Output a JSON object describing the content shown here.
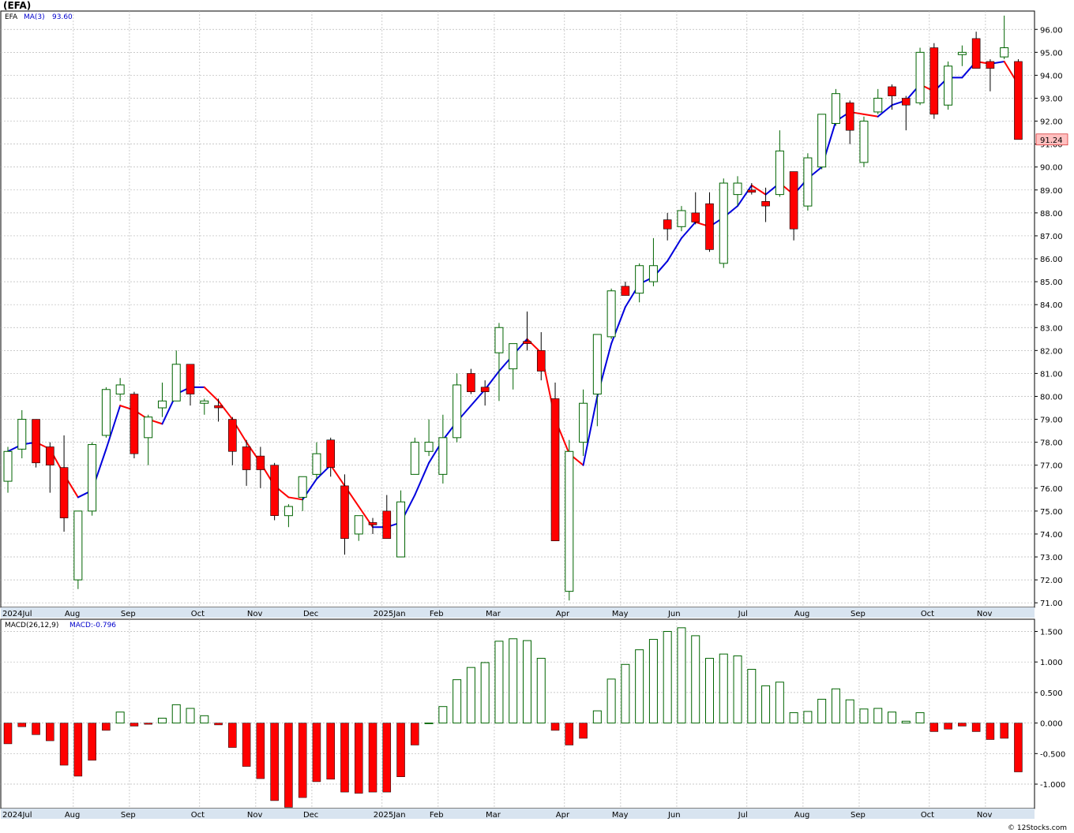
{
  "symbol": "(EFA)",
  "footer": "© 12Stocks.com",
  "colors": {
    "up": "#ffffff",
    "up_border": "#006400",
    "down": "#ff0000",
    "ma_up": "#0000dd",
    "ma_down": "#ff0000",
    "grid": "#b8b8b8",
    "axis_band": "#d8e4f0",
    "last_price_bg": "#ffc0c0"
  },
  "chart_data": [
    {
      "type": "candlestick",
      "panel": "price",
      "legend": {
        "symbol": "EFA",
        "ma_label": "MA(3)",
        "ma_value": "93.60"
      },
      "last_price_label": "91.24",
      "ylim": [
        70.8,
        96.8
      ],
      "y_ticks": [
        "71.00",
        "72.00",
        "73.00",
        "74.00",
        "75.00",
        "76.00",
        "77.00",
        "78.00",
        "79.00",
        "80.00",
        "81.00",
        "82.00",
        "83.00",
        "84.00",
        "85.00",
        "86.00",
        "87.00",
        "88.00",
        "89.00",
        "90.00",
        "91.00",
        "92.00",
        "93.00",
        "94.00",
        "95.00",
        "96.00"
      ],
      "months": [
        {
          "label": "2024Jul",
          "week": 0
        },
        {
          "label": "Aug",
          "week": 5
        },
        {
          "label": "Sep",
          "week": 9
        },
        {
          "label": "Oct",
          "week": 14
        },
        {
          "label": "Nov",
          "week": 18
        },
        {
          "label": "Dec",
          "week": 22
        },
        {
          "label": "2025Jan",
          "week": 27
        },
        {
          "label": "Feb",
          "week": 31
        },
        {
          "label": "Mar",
          "week": 35
        },
        {
          "label": "Apr",
          "week": 40
        },
        {
          "label": "May",
          "week": 44
        },
        {
          "label": "Jun",
          "week": 48
        },
        {
          "label": "Jul",
          "week": 53
        },
        {
          "label": "Aug",
          "week": 57
        },
        {
          "label": "Sep",
          "week": 61
        },
        {
          "label": "Oct",
          "week": 66
        },
        {
          "label": "Nov",
          "week": 70
        }
      ],
      "candles": [
        [
          76.3,
          77.8,
          75.8,
          77.6
        ],
        [
          77.7,
          79.4,
          77.3,
          79.0
        ],
        [
          79.0,
          79.0,
          76.9,
          77.1
        ],
        [
          77.8,
          78.0,
          75.8,
          77.0
        ],
        [
          76.9,
          78.3,
          74.1,
          74.7
        ],
        [
          72.0,
          75.0,
          71.6,
          75.0
        ],
        [
          75.0,
          78.0,
          74.8,
          77.9
        ],
        [
          78.3,
          80.4,
          78.2,
          80.3
        ],
        [
          80.1,
          80.8,
          79.8,
          80.5
        ],
        [
          80.1,
          80.2,
          77.3,
          77.5
        ],
        [
          78.2,
          79.2,
          77.0,
          79.1
        ],
        [
          79.5,
          80.6,
          79.1,
          79.8
        ],
        [
          79.8,
          82.0,
          79.8,
          81.4
        ],
        [
          81.4,
          81.4,
          79.6,
          80.1
        ],
        [
          79.7,
          79.9,
          79.2,
          79.8
        ],
        [
          79.6,
          79.9,
          78.9,
          79.5
        ],
        [
          79.0,
          79.1,
          77.0,
          77.6
        ],
        [
          77.8,
          78.1,
          76.1,
          76.8
        ],
        [
          77.4,
          77.8,
          76.0,
          76.8
        ],
        [
          77.0,
          77.1,
          74.6,
          74.8
        ],
        [
          74.8,
          75.3,
          74.3,
          75.2
        ],
        [
          75.6,
          76.5,
          75.0,
          76.5
        ],
        [
          76.6,
          78.0,
          76.4,
          77.5
        ],
        [
          78.1,
          78.2,
          76.5,
          76.9
        ],
        [
          76.1,
          76.6,
          73.1,
          73.8
        ],
        [
          74.0,
          74.8,
          73.7,
          74.8
        ],
        [
          74.5,
          74.7,
          74.0,
          74.4
        ],
        [
          75.0,
          75.7,
          73.8,
          73.8
        ],
        [
          73.0,
          75.9,
          73.0,
          75.4
        ],
        [
          76.6,
          78.2,
          76.6,
          78.0
        ],
        [
          77.6,
          79.0,
          77.4,
          78.0
        ],
        [
          76.6,
          79.2,
          76.2,
          78.2
        ],
        [
          78.2,
          81.0,
          78.0,
          80.5
        ],
        [
          81.0,
          81.2,
          80.1,
          80.2
        ],
        [
          80.4,
          80.7,
          79.6,
          80.2
        ],
        [
          81.9,
          83.2,
          79.8,
          83.0
        ],
        [
          81.2,
          82.3,
          80.3,
          82.3
        ],
        [
          82.4,
          83.7,
          82.0,
          82.3
        ],
        [
          82.0,
          82.8,
          80.7,
          81.1
        ],
        [
          79.9,
          80.6,
          73.7,
          73.7
        ],
        [
          71.5,
          78.1,
          71.1,
          77.6
        ],
        [
          78.0,
          80.3,
          77.4,
          79.7
        ],
        [
          80.1,
          82.7,
          78.7,
          82.7
        ],
        [
          82.6,
          84.7,
          82.5,
          84.6
        ],
        [
          84.8,
          85.0,
          84.4,
          84.4
        ],
        [
          84.5,
          85.8,
          84.1,
          85.7
        ],
        [
          85.0,
          86.9,
          84.8,
          85.7
        ],
        [
          87.7,
          88.0,
          86.8,
          87.3
        ],
        [
          87.4,
          88.3,
          87.2,
          88.1
        ],
        [
          88.0,
          88.9,
          87.5,
          87.6
        ],
        [
          88.4,
          88.9,
          86.3,
          86.4
        ],
        [
          85.8,
          89.5,
          85.6,
          89.3
        ],
        [
          88.8,
          89.6,
          88.3,
          89.3
        ],
        [
          89.0,
          89.3,
          88.8,
          88.9
        ],
        [
          88.5,
          89.1,
          87.6,
          88.3
        ],
        [
          88.8,
          91.6,
          88.7,
          90.7
        ],
        [
          89.8,
          89.8,
          86.8,
          87.3
        ],
        [
          88.3,
          90.6,
          88.1,
          90.4
        ],
        [
          90.0,
          92.3,
          89.9,
          92.3
        ],
        [
          91.9,
          93.4,
          91.8,
          93.2
        ],
        [
          92.8,
          92.9,
          91.0,
          91.6
        ],
        [
          90.2,
          92.2,
          90.0,
          92.0
        ],
        [
          92.4,
          93.4,
          92.3,
          93.0
        ],
        [
          93.5,
          93.6,
          92.5,
          93.1
        ],
        [
          93.0,
          93.1,
          91.6,
          92.7
        ],
        [
          92.8,
          95.2,
          92.7,
          95.0
        ],
        [
          95.2,
          95.4,
          92.1,
          92.3
        ],
        [
          92.7,
          94.6,
          92.5,
          94.4
        ],
        [
          94.9,
          95.3,
          94.4,
          95.0
        ],
        [
          95.6,
          95.9,
          94.3,
          94.3
        ],
        [
          94.6,
          94.7,
          93.3,
          94.3
        ],
        [
          94.8,
          96.6,
          94.7,
          95.2
        ],
        [
          94.6,
          94.7,
          91.2,
          91.2
        ]
      ],
      "ma3": [
        77.6,
        77.9,
        78.0,
        77.7,
        76.6,
        75.6,
        75.9,
        77.7,
        79.6,
        79.4,
        79.0,
        78.8,
        80.1,
        80.4,
        80.4,
        79.8,
        79.0,
        78.0,
        77.1,
        76.1,
        75.6,
        75.5,
        76.4,
        77.0,
        76.1,
        75.2,
        74.3,
        74.3,
        74.5,
        75.7,
        77.1,
        78.1,
        78.9,
        79.6,
        80.3,
        81.1,
        81.8,
        82.5,
        81.9,
        79.0,
        77.5,
        77.0,
        80.0,
        82.3,
        83.9,
        84.9,
        85.2,
        85.9,
        86.9,
        87.6,
        87.4,
        87.8,
        88.3,
        89.2,
        88.8,
        89.3,
        88.8,
        89.5,
        90.0,
        92.0,
        92.4,
        92.3,
        92.2,
        92.7,
        92.9,
        93.6,
        93.3,
        93.9,
        93.9,
        94.6,
        94.5,
        94.6,
        93.6
      ]
    },
    {
      "type": "bar",
      "panel": "macd",
      "legend": {
        "label": "MACD(26,12,9)",
        "value_label": "MACD:-0.796"
      },
      "ylim": [
        -1.4,
        1.7
      ],
      "y_ticks": [
        "1.500",
        "1.000",
        "0.500",
        "0.000",
        "-0.500",
        "-1.000"
      ],
      "values": [
        -0.34,
        -0.06,
        -0.19,
        -0.29,
        -0.69,
        -0.87,
        -0.61,
        -0.12,
        0.18,
        -0.05,
        -0.02,
        0.08,
        0.3,
        0.24,
        0.12,
        -0.03,
        -0.4,
        -0.71,
        -0.91,
        -1.27,
        -1.38,
        -1.22,
        -0.96,
        -0.92,
        -1.13,
        -1.15,
        -1.13,
        -1.13,
        -0.88,
        -0.36,
        0.0,
        0.27,
        0.71,
        0.91,
        0.99,
        1.34,
        1.38,
        1.35,
        1.06,
        -0.12,
        -0.36,
        -0.25,
        0.2,
        0.72,
        0.96,
        1.2,
        1.37,
        1.5,
        1.56,
        1.43,
        1.06,
        1.13,
        1.1,
        0.88,
        0.61,
        0.67,
        0.17,
        0.19,
        0.39,
        0.56,
        0.38,
        0.23,
        0.24,
        0.18,
        0.03,
        0.17,
        -0.14,
        -0.1,
        -0.05,
        -0.14,
        -0.27,
        -0.25,
        -0.8
      ]
    }
  ]
}
